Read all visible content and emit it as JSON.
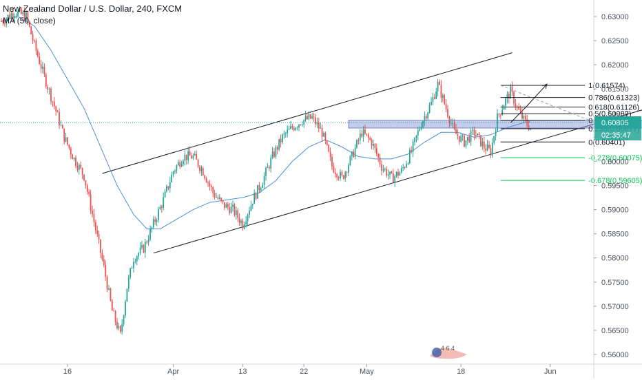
{
  "header": {
    "title": "New Zealand Dollar / U.S. Dollar, 240, FXCM",
    "indicator": "MA (50, close)"
  },
  "price_badge": {
    "value": "0.60805",
    "countdown": "02:35:47",
    "color": "#26a69a"
  },
  "logo": {
    "text": "4 6 4"
  },
  "colors": {
    "up": "#26a69a",
    "down": "#ef5350",
    "ma": "#4a8fd8",
    "fib_ext": "#00c853",
    "zone": "#7e8bd0"
  },
  "chart_data": {
    "type": "candlestick",
    "x_tick_labels": [
      "16",
      "Apr",
      "13",
      "22",
      "May",
      "18",
      "Jun"
    ],
    "y_ticks": [
      0.56,
      0.565,
      0.57,
      0.575,
      0.58,
      0.585,
      0.59,
      0.595,
      0.6,
      0.605,
      0.61,
      0.615,
      0.62,
      0.625,
      0.63
    ],
    "y_tick_labels": [
      "0.56000",
      "0.56500",
      "0.57000",
      "0.57500",
      "0.58000",
      "0.58500",
      "0.59000",
      "0.59500",
      "0.60000",
      "0.60500",
      "0.61000",
      "0.61500",
      "0.62000",
      "0.62500",
      "0.63000"
    ],
    "ylim": [
      0.5585,
      0.6335
    ],
    "current_price": 0.60805,
    "anchors": [
      [
        0,
        0.629
      ],
      [
        8,
        0.631
      ],
      [
        15,
        0.63
      ],
      [
        20,
        0.624
      ],
      [
        26,
        0.6175
      ],
      [
        32,
        0.6115
      ],
      [
        38,
        0.605
      ],
      [
        44,
        0.6005
      ],
      [
        50,
        0.597
      ],
      [
        56,
        0.5875
      ],
      [
        62,
        0.578
      ],
      [
        67,
        0.569
      ],
      [
        72,
        0.564
      ],
      [
        76,
        0.574
      ],
      [
        80,
        0.58
      ],
      [
        86,
        0.582
      ],
      [
        92,
        0.587
      ],
      [
        98,
        0.592
      ],
      [
        104,
        0.598
      ],
      [
        110,
        0.601
      ],
      [
        116,
        0.601
      ],
      [
        122,
        0.598
      ],
      [
        128,
        0.5935
      ],
      [
        134,
        0.591
      ],
      [
        140,
        0.59
      ],
      [
        146,
        0.587
      ],
      [
        152,
        0.592
      ],
      [
        158,
        0.596
      ],
      [
        164,
        0.601
      ],
      [
        170,
        0.605
      ],
      [
        176,
        0.607
      ],
      [
        182,
        0.6085
      ],
      [
        188,
        0.609
      ],
      [
        194,
        0.606
      ],
      [
        200,
        0.599
      ],
      [
        206,
        0.5965
      ],
      [
        212,
        0.601
      ],
      [
        218,
        0.606
      ],
      [
        224,
        0.604
      ],
      [
        230,
        0.599
      ],
      [
        236,
        0.5965
      ],
      [
        242,
        0.598
      ],
      [
        248,
        0.602
      ],
      [
        254,
        0.608
      ],
      [
        260,
        0.612
      ],
      [
        264,
        0.616
      ],
      [
        268,
        0.612
      ],
      [
        274,
        0.606
      ],
      [
        280,
        0.604
      ],
      [
        286,
        0.606
      ],
      [
        292,
        0.603
      ],
      [
        296,
        0.602
      ],
      [
        300,
        0.609
      ],
      [
        304,
        0.612
      ],
      [
        308,
        0.6145
      ],
      [
        312,
        0.611
      ],
      [
        316,
        0.6085
      ],
      [
        320,
        0.607
      ]
    ],
    "moving_average_path": [
      [
        0,
        0.629
      ],
      [
        10,
        0.63
      ],
      [
        20,
        0.628
      ],
      [
        30,
        0.623
      ],
      [
        40,
        0.617
      ],
      [
        50,
        0.611
      ],
      [
        60,
        0.603
      ],
      [
        70,
        0.595
      ],
      [
        80,
        0.589
      ],
      [
        88,
        0.586
      ],
      [
        96,
        0.586
      ],
      [
        106,
        0.588
      ],
      [
        116,
        0.59
      ],
      [
        126,
        0.5915
      ],
      [
        136,
        0.592
      ],
      [
        146,
        0.5925
      ],
      [
        156,
        0.5935
      ],
      [
        166,
        0.596
      ],
      [
        176,
        0.6
      ],
      [
        186,
        0.603
      ],
      [
        196,
        0.6045
      ],
      [
        206,
        0.603
      ],
      [
        216,
        0.601
      ],
      [
        226,
        0.6005
      ],
      [
        236,
        0.6005
      ],
      [
        246,
        0.6015
      ],
      [
        256,
        0.604
      ],
      [
        266,
        0.606
      ],
      [
        276,
        0.606
      ],
      [
        286,
        0.605
      ],
      [
        296,
        0.6055
      ],
      [
        306,
        0.607
      ],
      [
        316,
        0.608
      ],
      [
        320,
        0.6082
      ]
    ],
    "upper_channel": {
      "from": [
        61,
        0.5975
      ],
      "to": [
        309,
        0.6225
      ]
    },
    "lower_channel": {
      "from": [
        92,
        0.581
      ],
      "to": [
        431,
        0.615
      ]
    },
    "resistance_zone": {
      "from_index": 210,
      "to_index": 432,
      "low": 0.6069,
      "high": 0.6085
    },
    "forecast_arrow": {
      "path": [
        [
          308,
          0.608
        ],
        [
          318,
          0.6115
        ],
        [
          330,
          0.616
        ]
      ]
    },
    "fibonacci_levels": [
      {
        "label": "1(0.61574)",
        "value": 0.61574,
        "extension": false
      },
      {
        "label": "0.786(0.61323)",
        "value": 0.61323,
        "extension": false
      },
      {
        "label": "0.618(0.61126)",
        "value": 0.61126,
        "extension": false
      },
      {
        "label": "0.5(0.60987)",
        "value": 0.60987,
        "extension": false
      },
      {
        "label": "0.382(0.60849)",
        "value": 0.60849,
        "extension": false
      },
      {
        "label": "0.236(0.60677)",
        "value": 0.60677,
        "extension": false
      },
      {
        "label": "0(0.60401)",
        "value": 0.60401,
        "extension": false
      },
      {
        "label": "-0.278(0.60075)",
        "value": 0.60075,
        "extension": true
      },
      {
        "label": "-0.678(0.59605)",
        "value": 0.59605,
        "extension": true
      }
    ],
    "fib_range": {
      "from_index": 302,
      "to_index": 353
    }
  }
}
